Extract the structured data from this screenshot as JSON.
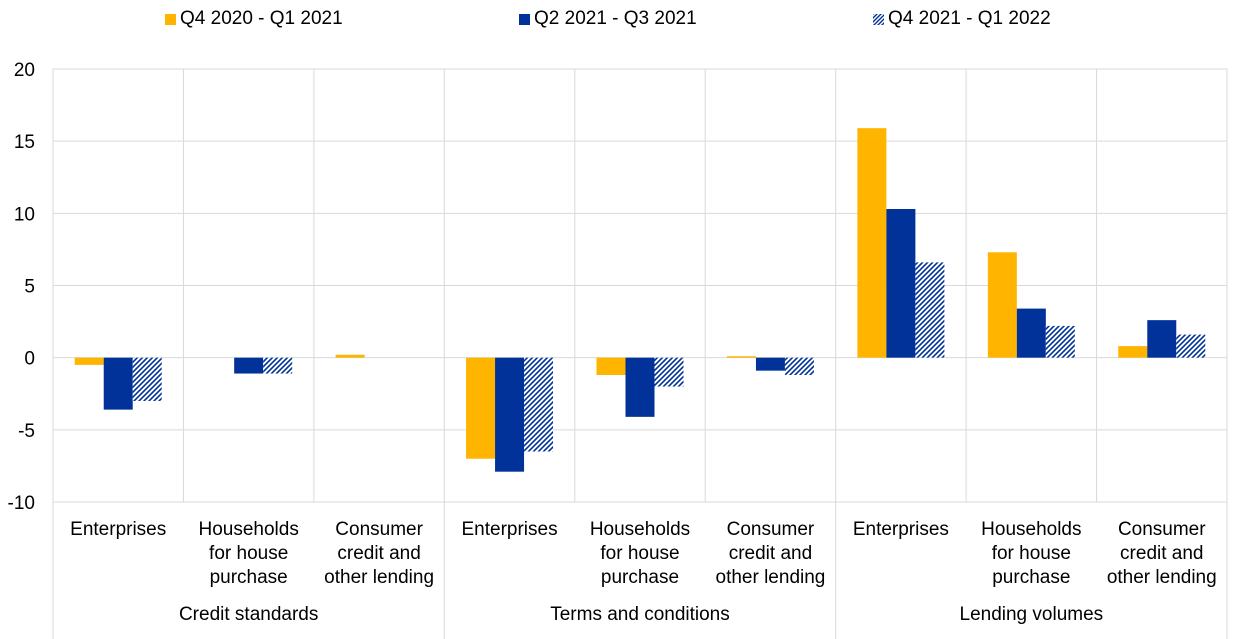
{
  "chart_data": {
    "type": "bar",
    "legend_position": "top",
    "grid": true,
    "ylim": [
      -10,
      20
    ],
    "yticks": [
      -10,
      -5,
      0,
      5,
      10,
      15,
      20
    ],
    "groups": [
      {
        "label": "Credit standards",
        "categories": [
          "Enterprises",
          "Households\nfor house\npurchase",
          "Consumer\ncredit and\nother lending"
        ]
      },
      {
        "label": "Terms and conditions",
        "categories": [
          "Enterprises",
          "Households\nfor house\npurchase",
          "Consumer\ncredit and\nother lending"
        ]
      },
      {
        "label": "Lending volumes",
        "categories": [
          "Enterprises",
          "Households\nfor house\npurchase",
          "Consumer\ncredit and\nother lending"
        ]
      }
    ],
    "series": [
      {
        "name": "Q4 2020 - Q1 2021",
        "color": "#FFB400",
        "pattern": "solid",
        "values": [
          -0.5,
          0,
          0.2,
          -7.0,
          -1.2,
          0.1,
          15.9,
          7.3,
          0.8
        ]
      },
      {
        "name": "Q2 2021 - Q3 2021",
        "color": "#003299",
        "pattern": "solid",
        "values": [
          -3.6,
          -1.1,
          0,
          -7.9,
          -4.1,
          -0.9,
          10.3,
          3.4,
          2.6
        ]
      },
      {
        "name": "Q4 2021 - Q1 2022",
        "color": "#003299",
        "pattern": "diagonal-hatch",
        "values": [
          -3.0,
          -1.1,
          0,
          -6.5,
          -2.0,
          -1.2,
          6.6,
          2.2,
          1.6
        ]
      }
    ]
  }
}
